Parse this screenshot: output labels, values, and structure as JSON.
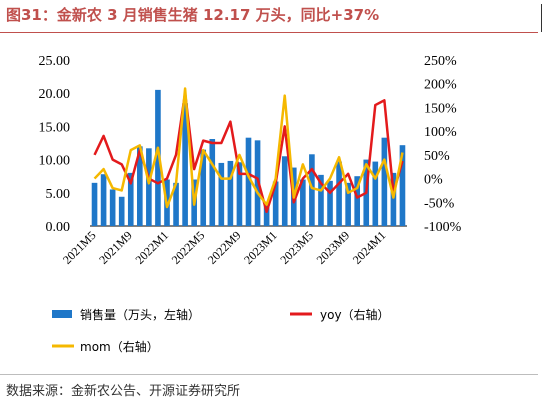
{
  "header": {
    "title": "图31：金新农 3 月销售生猪 12.17 万头，同比+37%"
  },
  "footer": {
    "source": "数据来源：金新农公告、开源证券研究所"
  },
  "colors": {
    "title": "#c0504d",
    "bars": "#1f77c8",
    "yoy": "#e31a1c",
    "mom": "#f5b800"
  },
  "chart_data": {
    "type": "bar+line",
    "categories": [
      "2021M5",
      "2021M6",
      "2021M7",
      "2021M8",
      "2021M9",
      "2021M10",
      "2021M11",
      "2021M12",
      "2022M1",
      "2022M2",
      "2022M3",
      "2022M4",
      "2022M5",
      "2022M6",
      "2022M7",
      "2022M8",
      "2022M9",
      "2022M10",
      "2022M11",
      "2022M12",
      "2023M1",
      "2023M2",
      "2023M3",
      "2023M4",
      "2023M5",
      "2023M6",
      "2023M7",
      "2023M8",
      "2023M9",
      "2023M10",
      "2023M11",
      "2023M12",
      "2024M1",
      "2024M2",
      "2024M3"
    ],
    "x_tick_labels": [
      "2021M5",
      "2021M9",
      "2022M1",
      "2022M5",
      "2022M9",
      "2023M1",
      "2023M5",
      "2023M9",
      "2024M1"
    ],
    "left_axis": {
      "min": 0,
      "max": 25,
      "ticks": [
        "0.00",
        "5.00",
        "10.00",
        "15.00",
        "20.00",
        "25.00"
      ]
    },
    "right_axis": {
      "min": -100,
      "max": 250,
      "ticks": [
        "-100%",
        "-50%",
        "0%",
        "50%",
        "100%",
        "150%",
        "200%",
        "250%"
      ]
    },
    "series": [
      {
        "name": "销售量（万头，左轴）",
        "type": "bar",
        "axis": "left",
        "values": [
          6.5,
          7.8,
          5.5,
          4.4,
          8.0,
          12.0,
          11.7,
          20.5,
          7.0,
          6.5,
          18.5,
          7.0,
          11.5,
          13.1,
          9.5,
          9.8,
          9.6,
          13.3,
          12.9,
          3.5,
          6.7,
          10.5,
          8.8,
          7.0,
          10.8,
          7.7,
          6.8,
          9.7,
          6.5,
          7.5,
          10.0,
          9.7,
          13.3,
          8.0,
          12.17
        ]
      },
      {
        "name": "yoy（右轴）",
        "type": "line",
        "axis": "right",
        "values": [
          50,
          90,
          40,
          30,
          -10,
          60,
          0,
          -10,
          0,
          50,
          180,
          20,
          80,
          75,
          75,
          120,
          10,
          10,
          0,
          -70,
          -10,
          110,
          -50,
          0,
          20,
          -10,
          -30,
          -10,
          10,
          -40,
          -30,
          155,
          165,
          -30,
          37
        ]
      },
      {
        "name": "mom（右轴）",
        "type": "line",
        "axis": "right",
        "values": [
          0,
          20,
          -20,
          -25,
          60,
          70,
          -10,
          65,
          -60,
          -10,
          190,
          -55,
          60,
          30,
          0,
          0,
          50,
          5,
          -30,
          -55,
          0,
          175,
          -40,
          30,
          -20,
          -25,
          0,
          45,
          -30,
          -20,
          30,
          0,
          40,
          -40,
          55
        ]
      }
    ],
    "legend_position": "bottom",
    "grid": false
  }
}
